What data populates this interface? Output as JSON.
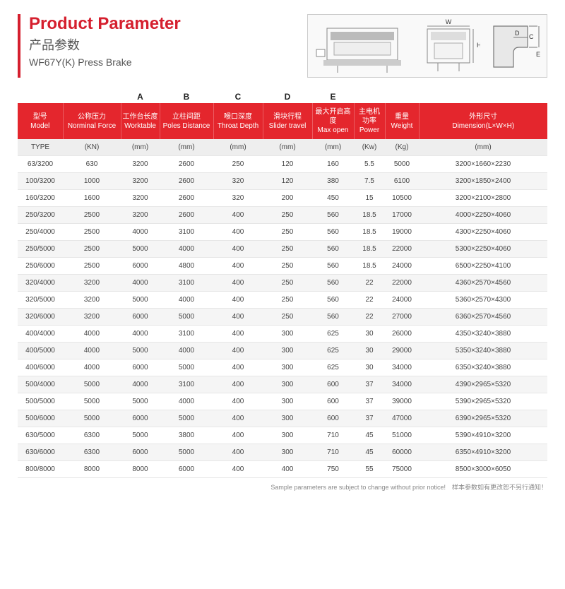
{
  "header": {
    "title_en": "Product Parameter",
    "title_cn": "产品参数",
    "subtitle": "WF67Y(K) Press Brake"
  },
  "letter_labels": [
    "",
    "",
    "A",
    "B",
    "C",
    "D",
    "E",
    "",
    "",
    ""
  ],
  "diagram_letters": {
    "w": "W",
    "h": "H",
    "d": "D",
    "c": "C",
    "e": "E"
  },
  "columns": [
    {
      "cn": "型号",
      "en": "Model"
    },
    {
      "cn": "公称压力",
      "en": "Norminal Force"
    },
    {
      "cn": "工作台长度",
      "en": "Worktable"
    },
    {
      "cn": "立柱间距",
      "en": "Poles Distance"
    },
    {
      "cn": "喉口深度",
      "en": "Throat Depth"
    },
    {
      "cn": "滑块行程",
      "en": "Slider travel"
    },
    {
      "cn": "最大开启高度",
      "en": "Max open"
    },
    {
      "cn": "主电机功率",
      "en": "Power"
    },
    {
      "cn": "重量",
      "en": "Weight"
    },
    {
      "cn": "外形尺寸",
      "en": "Dimension(L×W×H)"
    }
  ],
  "units": [
    "TYPE",
    "(KN)",
    "(mm)",
    "(mm)",
    "(mm)",
    "(mm)",
    "(mm)",
    "(Kw)",
    "(Kg)",
    "(mm)"
  ],
  "rows": [
    [
      "63/3200",
      "630",
      "3200",
      "2600",
      "250",
      "120",
      "160",
      "5.5",
      "5000",
      "3200×1660×2230"
    ],
    [
      "100/3200",
      "1000",
      "3200",
      "2600",
      "320",
      "120",
      "380",
      "7.5",
      "6100",
      "3200×1850×2400"
    ],
    [
      "160/3200",
      "1600",
      "3200",
      "2600",
      "320",
      "200",
      "450",
      "15",
      "10500",
      "3200×2100×2800"
    ],
    [
      "250/3200",
      "2500",
      "3200",
      "2600",
      "400",
      "250",
      "560",
      "18.5",
      "17000",
      "4000×2250×4060"
    ],
    [
      "250/4000",
      "2500",
      "4000",
      "3100",
      "400",
      "250",
      "560",
      "18.5",
      "19000",
      "4300×2250×4060"
    ],
    [
      "250/5000",
      "2500",
      "5000",
      "4000",
      "400",
      "250",
      "560",
      "18.5",
      "22000",
      "5300×2250×4060"
    ],
    [
      "250/6000",
      "2500",
      "6000",
      "4800",
      "400",
      "250",
      "560",
      "18.5",
      "24000",
      "6500×2250×4100"
    ],
    [
      "320/4000",
      "3200",
      "4000",
      "3100",
      "400",
      "250",
      "560",
      "22",
      "22000",
      "4360×2570×4560"
    ],
    [
      "320/5000",
      "3200",
      "5000",
      "4000",
      "400",
      "250",
      "560",
      "22",
      "24000",
      "5360×2570×4300"
    ],
    [
      "320/6000",
      "3200",
      "6000",
      "5000",
      "400",
      "250",
      "560",
      "22",
      "27000",
      "6360×2570×4560"
    ],
    [
      "400/4000",
      "4000",
      "4000",
      "3100",
      "400",
      "300",
      "625",
      "30",
      "26000",
      "4350×3240×3880"
    ],
    [
      "400/5000",
      "4000",
      "5000",
      "4000",
      "400",
      "300",
      "625",
      "30",
      "29000",
      "5350×3240×3880"
    ],
    [
      "400/6000",
      "4000",
      "6000",
      "5000",
      "400",
      "300",
      "625",
      "30",
      "34000",
      "6350×3240×3880"
    ],
    [
      "500/4000",
      "5000",
      "4000",
      "3100",
      "400",
      "300",
      "600",
      "37",
      "34000",
      "4390×2965×5320"
    ],
    [
      "500/5000",
      "5000",
      "5000",
      "4000",
      "400",
      "300",
      "600",
      "37",
      "39000",
      "5390×2965×5320"
    ],
    [
      "500/6000",
      "5000",
      "6000",
      "5000",
      "400",
      "300",
      "600",
      "37",
      "47000",
      "6390×2965×5320"
    ],
    [
      "630/5000",
      "6300",
      "5000",
      "3800",
      "400",
      "300",
      "710",
      "45",
      "51000",
      "5390×4910×3200"
    ],
    [
      "630/6000",
      "6300",
      "6000",
      "5000",
      "400",
      "300",
      "710",
      "45",
      "60000",
      "6350×4910×3200"
    ],
    [
      "800/8000",
      "8000",
      "8000",
      "6000",
      "400",
      "400",
      "750",
      "55",
      "75000",
      "8500×3000×6050"
    ]
  ],
  "footnote": "Sample parameters are subject to change without prior notice!　样本参数如有更改恕不另行通知！",
  "colors": {
    "accent": "#d51f2e",
    "header_bg": "#e4262d",
    "row_alt": "#f5f5f5",
    "border": "#e6e6e6"
  }
}
